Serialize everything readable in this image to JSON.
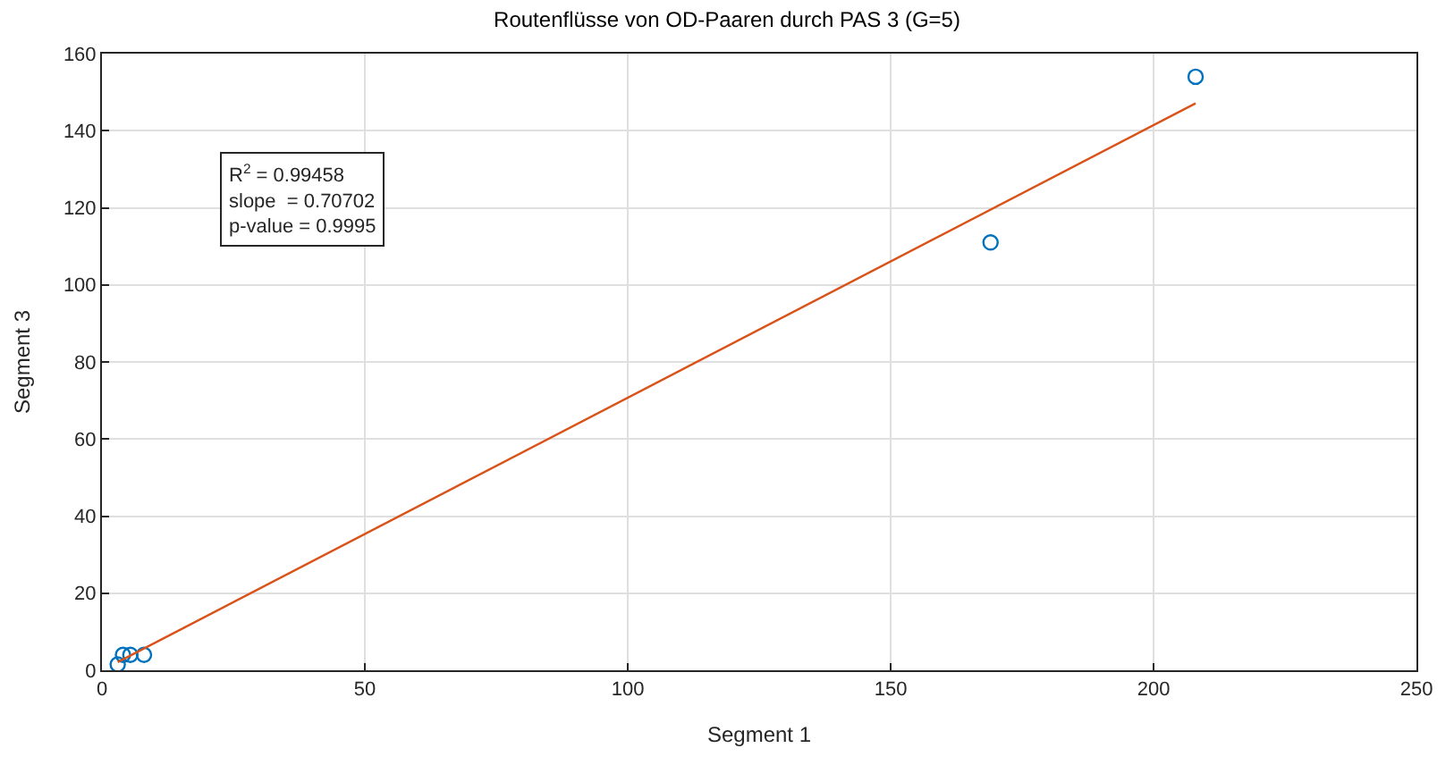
{
  "chart_data": {
    "type": "scatter",
    "title": "Routenflüsse von OD-Paaren durch PAS 3 (G=5)",
    "xlabel": "Segment 1",
    "ylabel": "Segment 3",
    "series": [
      {
        "color": "#0072bd",
        "marker": "circle",
        "x": [
          3,
          4,
          5.4,
          8,
          169,
          208
        ],
        "values": [
          1.5,
          4,
          4,
          4,
          111,
          154
        ]
      },
      {
        "type": "line",
        "color": "#d95319",
        "marker": "none",
        "x": [
          3,
          208
        ],
        "values": [
          2.1,
          147.1
        ]
      }
    ],
    "annotations": [
      "R$^{2}$ = 0.99458\nslope  = 0.70702\np-value = 0.9995"
    ],
    "xlim": [
      0,
      250
    ],
    "xticks": [
      0,
      50,
      100,
      150,
      200,
      250
    ],
    "ylim": [
      0,
      160
    ],
    "yticks": [
      0,
      20,
      40,
      60,
      80,
      100,
      120,
      140,
      160
    ],
    "grid": true,
    "legend": false
  }
}
